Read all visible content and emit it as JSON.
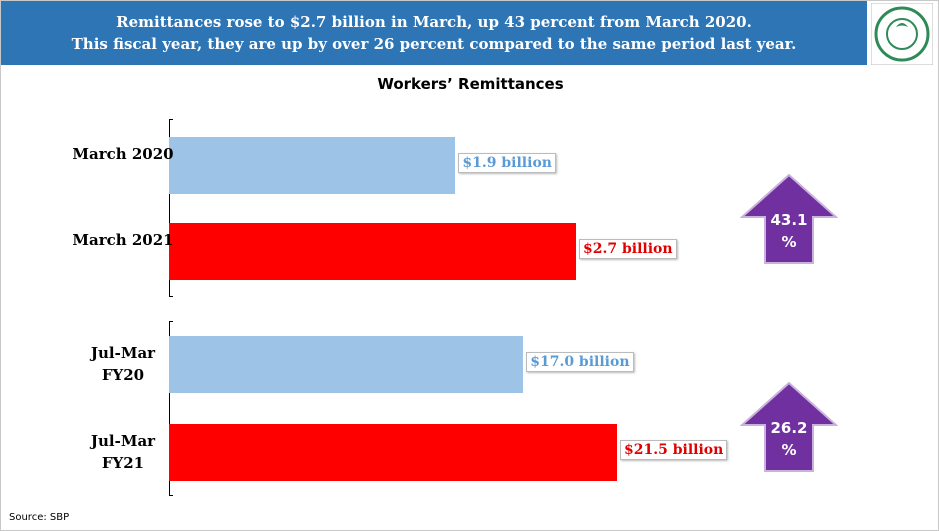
{
  "header": {
    "title": "Remittances rose to $2.7 billion in March, up 43 percent from March 2020.",
    "subtitle": "This fiscal year, they are up by over 26 percent compared to the same period last year."
  },
  "title": "Workers’ Remittances",
  "source": "Source: SBP",
  "chart_data": [
    {
      "type": "bar",
      "orientation": "horizontal",
      "categories": [
        "March 2020",
        "March 2021"
      ],
      "values": [
        1.9,
        2.7
      ],
      "value_labels": [
        "$1.9 billion",
        "$2.7 billion"
      ],
      "colors": [
        "#9dc3e6",
        "#ff0000"
      ],
      "label_colors": [
        "#5b9bd5",
        "#e00000"
      ],
      "annotation": "43.1 %"
    },
    {
      "type": "bar",
      "orientation": "horizontal",
      "categories": [
        "Jul-Mar FY20",
        "Jul-Mar FY21"
      ],
      "values": [
        17.0,
        21.5
      ],
      "value_labels": [
        "$17.0 billion",
        "$21.5 billion"
      ],
      "colors": [
        "#9dc3e6",
        "#ff0000"
      ],
      "label_colors": [
        "#5b9bd5",
        "#e00000"
      ],
      "annotation": "26.2 %"
    }
  ]
}
